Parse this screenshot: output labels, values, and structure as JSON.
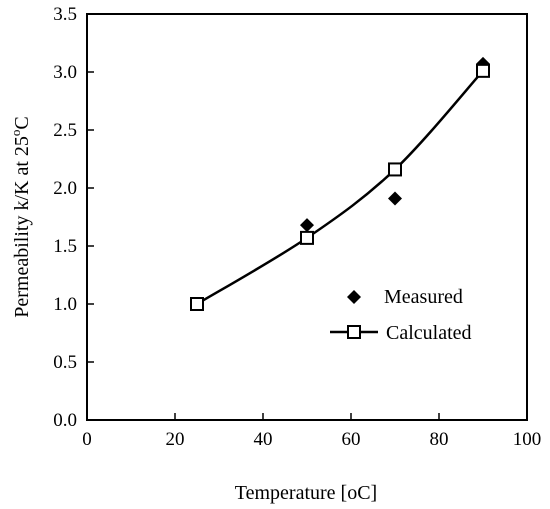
{
  "chart_data": {
    "type": "scatter",
    "xlabel": "Temperature [oC]",
    "ylabel": {
      "main": "Permeability k/K at 25",
      "superscript": "o",
      "unit": "C"
    },
    "xlim": [
      0,
      100
    ],
    "ylim": [
      0.0,
      3.5
    ],
    "x_ticks": [
      "0",
      "20",
      "40",
      "60",
      "80",
      "100"
    ],
    "y_ticks": [
      "0.0",
      "0.5",
      "1.0",
      "1.5",
      "2.0",
      "2.5",
      "3.0",
      "3.5"
    ],
    "grid": false,
    "legend_position": "bottom-right",
    "series": [
      {
        "name": "Measured",
        "marker": "filled-diamond",
        "line": false,
        "x": [
          25,
          50,
          70,
          90
        ],
        "y": [
          1.0,
          1.68,
          1.91,
          3.07
        ]
      },
      {
        "name": "Calculated",
        "marker": "open-square",
        "line": true,
        "x": [
          25,
          50,
          70,
          90
        ],
        "y": [
          1.0,
          1.57,
          2.16,
          3.01
        ]
      }
    ],
    "colors": {
      "marker": "#000000",
      "line": "#000000"
    }
  }
}
